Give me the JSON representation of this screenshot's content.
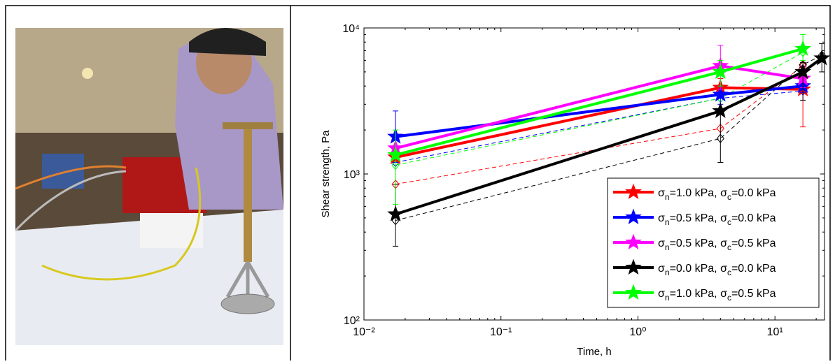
{
  "chart_data": {
    "type": "line",
    "log_x": true,
    "log_y": true,
    "x_label": "Time, h",
    "y_label": "Shear strength, Pa",
    "xlim": [
      0.01,
      23
    ],
    "ylim": [
      100,
      10000
    ],
    "xticks": [
      {
        "value": 0.01,
        "label": "10⁻²"
      },
      {
        "value": 0.1,
        "label": "10⁻¹"
      },
      {
        "value": 1,
        "label": "10⁰"
      },
      {
        "value": 10,
        "label": "10¹"
      }
    ],
    "yticks": [
      {
        "value": 100,
        "label": "10²"
      },
      {
        "value": 1000,
        "label": "10³"
      },
      {
        "value": 10000,
        "label": "10⁴"
      }
    ],
    "legend": "lower right",
    "series": [
      {
        "name": "σn=1.0 kPa, σc=0.0 kPa",
        "color": "#ff0000",
        "x": [
          0.017,
          4,
          16
        ],
        "values": [
          1300,
          3900,
          3800
        ],
        "lower": [
          null,
          3300,
          2100
        ],
        "upper": [
          null,
          4500,
          5800
        ]
      },
      {
        "name": "σn=0.5 kPa, σc=0.0 kPa",
        "color": "#0000ff",
        "x": [
          0.017,
          4,
          16
        ],
        "values": [
          1800,
          3500,
          4000
        ],
        "lower": [
          1200,
          3000,
          3600
        ],
        "upper": [
          2700,
          4000,
          4500
        ]
      },
      {
        "name": "σn=0.5 kPa, σc=0.5 kPa",
        "color": "#ff00ff",
        "x": [
          0.017,
          4,
          16
        ],
        "values": [
          1500,
          5500,
          4500
        ],
        "lower": [
          null,
          3800,
          3900
        ],
        "upper": [
          null,
          7600,
          5500
        ]
      },
      {
        "name": "σn=0.0 kPa, σc=0.0 kPa",
        "color": "#000000",
        "x": [
          0.017,
          4,
          16,
          22
        ],
        "values": [
          530,
          2700,
          5000,
          6200
        ],
        "lower": [
          320,
          1200,
          3200,
          5000
        ],
        "upper": [
          850,
          2700,
          5800,
          7800
        ]
      },
      {
        "name": "σn=1.0 kPa, σc=0.5 kPa",
        "color": "#00ff00",
        "x": [
          0.017,
          4,
          16
        ],
        "values": [
          1350,
          5000,
          7200
        ],
        "lower": [
          620,
          4000,
          6000
        ],
        "upper": [
          2000,
          6000,
          9000
        ]
      }
    ],
    "dashed_series": [
      {
        "color": "#ff0000",
        "x": [
          0.017,
          4,
          16
        ],
        "values": [
          850,
          2050,
          5500
        ]
      },
      {
        "color": "#0000ff",
        "x": [
          0.017,
          4,
          16
        ],
        "values": [
          1200,
          3300,
          3700
        ]
      },
      {
        "color": "#000000",
        "x": [
          0.017,
          4,
          16,
          22
        ],
        "values": [
          480,
          1750,
          5600,
          6500
        ]
      },
      {
        "color": "#00ff00",
        "x": [
          0.017,
          4,
          16
        ],
        "values": [
          1150,
          3300,
          6800
        ]
      }
    ]
  }
}
